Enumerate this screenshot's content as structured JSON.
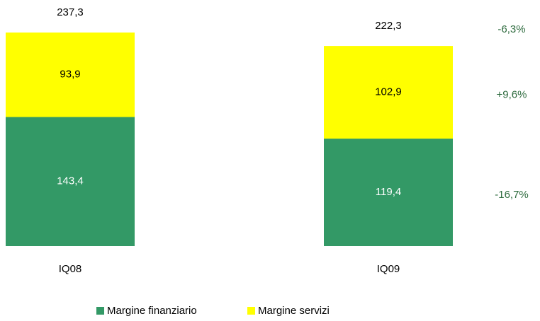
{
  "chart_data": {
    "type": "stacked_bar",
    "categories": [
      "IQ08",
      "IQ09"
    ],
    "series": [
      {
        "name": "Margine finanziario",
        "color": "#339966",
        "values": [
          143.4,
          119.4
        ],
        "value_labels": [
          "143,4",
          "119,4"
        ],
        "change": "-16,7%"
      },
      {
        "name": "Margine servizi",
        "color": "#ffff00",
        "values": [
          93.9,
          102.9
        ],
        "value_labels": [
          "93,9",
          "102,9"
        ],
        "change": "+9,6%"
      }
    ],
    "totals": [
      237.3,
      222.3
    ],
    "total_labels": [
      "237,3",
      "222,3"
    ],
    "total_change": "-6,3%",
    "legend": "bottom"
  }
}
